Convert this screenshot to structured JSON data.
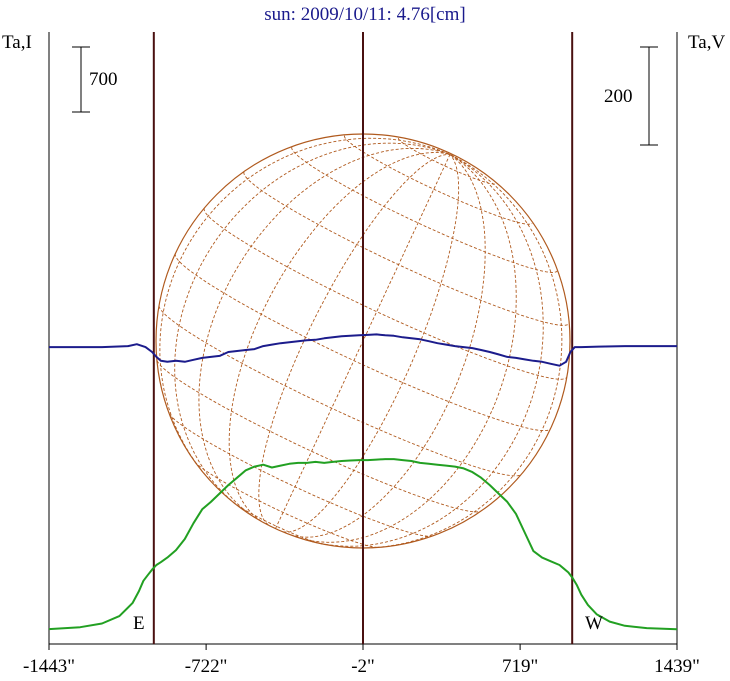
{
  "chart_data": {
    "type": "line",
    "title": "sun: 2009/10/11: 4.76[cm]",
    "y_left_label": "Ta,I",
    "y_right_label": "Ta,V",
    "scale_left": "700",
    "scale_right": "200",
    "limb_left_label": "E",
    "limb_right_label": "W",
    "x_tick_labels": [
      "-1443\"",
      "-722\"",
      "-2\"",
      "719\"",
      "1439\""
    ],
    "x_ticks": [
      -1443,
      -722,
      -2,
      719,
      1439
    ],
    "xlim": [
      -1443,
      1439
    ],
    "vertical_lines": [
      -962,
      -2,
      958
    ],
    "colors": {
      "I": "#22a022",
      "V": "#1c1c8c",
      "grid": "#b05a1e",
      "lines": "#4a1010"
    },
    "series": [
      {
        "key": "I",
        "x": [
          -1443,
          -1300,
          -1200,
          -1120,
          -1060,
          -1030,
          -1010,
          -990,
          -970,
          -950,
          -930,
          -900,
          -860,
          -820,
          -780,
          -740,
          -700,
          -660,
          -620,
          -580,
          -540,
          -500,
          -460,
          -420,
          -380,
          -340,
          -300,
          -260,
          -220,
          -180,
          -140,
          -100,
          -60,
          -20,
          20,
          60,
          100,
          140,
          180,
          220,
          260,
          300,
          340,
          380,
          420,
          460,
          500,
          540,
          580,
          620,
          660,
          700,
          740,
          780,
          820,
          860,
          900,
          920,
          940,
          960,
          980,
          1000,
          1030,
          1070,
          1130,
          1200,
          1300,
          1439
        ],
        "y": [
          10,
          30,
          70,
          150,
          290,
          420,
          530,
          590,
          650,
          700,
          730,
          780,
          860,
          980,
          1150,
          1300,
          1380,
          1470,
          1560,
          1640,
          1720,
          1760,
          1780,
          1750,
          1770,
          1790,
          1800,
          1800,
          1810,
          1800,
          1810,
          1820,
          1825,
          1830,
          1830,
          1835,
          1840,
          1840,
          1830,
          1820,
          1800,
          1790,
          1780,
          1770,
          1760,
          1740,
          1700,
          1640,
          1560,
          1470,
          1380,
          1250,
          1050,
          850,
          780,
          740,
          700,
          660,
          620,
          560,
          480,
          380,
          270,
          170,
          90,
          45,
          20,
          8
        ]
      },
      {
        "key": "V",
        "x": [
          -1443,
          -1200,
          -1080,
          -1040,
          -1000,
          -970,
          -950,
          -930,
          -900,
          -860,
          -820,
          -780,
          -740,
          -700,
          -660,
          -620,
          -580,
          -540,
          -500,
          -460,
          -420,
          -380,
          -340,
          -300,
          -260,
          -220,
          -180,
          -140,
          -100,
          -60,
          -20,
          20,
          60,
          100,
          140,
          180,
          220,
          260,
          300,
          340,
          380,
          420,
          460,
          500,
          540,
          580,
          620,
          660,
          700,
          740,
          780,
          820,
          860,
          900,
          930,
          950,
          970,
          1000,
          1080,
          1200,
          1439
        ],
        "y": [
          10,
          10,
          12,
          16,
          10,
          0,
          -10,
          -18,
          -20,
          -18,
          -20,
          -16,
          -12,
          -10,
          -8,
          0,
          2,
          4,
          6,
          12,
          15,
          18,
          20,
          22,
          24,
          25,
          28,
          30,
          32,
          33,
          34,
          35,
          36,
          34,
          33,
          30,
          28,
          26,
          22,
          18,
          15,
          12,
          10,
          8,
          4,
          0,
          -5,
          -10,
          -12,
          -15,
          -18,
          -20,
          -24,
          -28,
          -20,
          0,
          10,
          10,
          11,
          12,
          12
        ]
      }
    ]
  }
}
